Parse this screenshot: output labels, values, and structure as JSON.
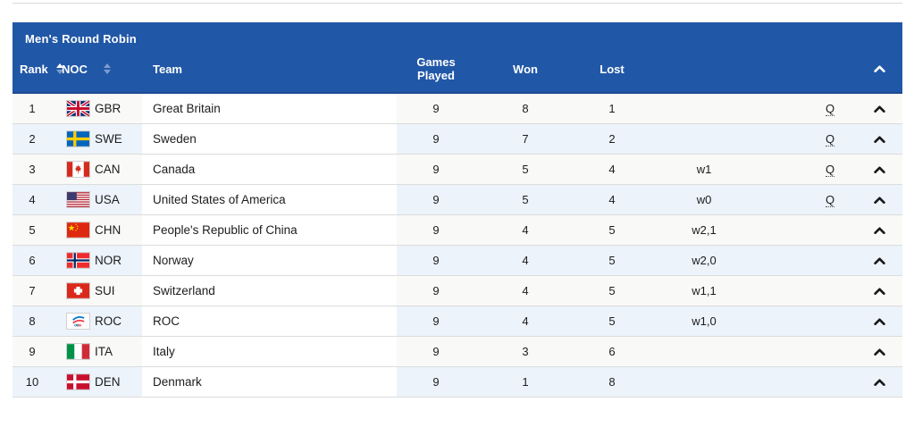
{
  "panel": {
    "title": "Men's Round Robin",
    "header": {
      "rank_label": "Rank",
      "noc_label": "NOC",
      "team_label": "Team",
      "games_played_label": "Games Played",
      "won_label": "Won",
      "lost_label": "Lost",
      "tiebreaker_label": "",
      "qualification_label": ""
    },
    "icons": {
      "rank_sort": "sort-arrows-icon (ascending active)",
      "noc_sort": "sort-arrows-icon",
      "collapse": "chevron-up-icon"
    },
    "colors": {
      "header_bg": "#2157a7",
      "header_text": "#ffffff",
      "stripe_bg": "#ecf3fb",
      "row_bg": "#f9f9f7",
      "border": "#dcdcdc",
      "cell_text": "#1c1c1c"
    },
    "rows": [
      {
        "rank": "1",
        "noc": "GBR",
        "team": "Great Britain",
        "games_played": "9",
        "won": "8",
        "lost": "1",
        "tiebreaker": "",
        "qualification": "Q"
      },
      {
        "rank": "2",
        "noc": "SWE",
        "team": "Sweden",
        "games_played": "9",
        "won": "7",
        "lost": "2",
        "tiebreaker": "",
        "qualification": "Q"
      },
      {
        "rank": "3",
        "noc": "CAN",
        "team": "Canada",
        "games_played": "9",
        "won": "5",
        "lost": "4",
        "tiebreaker": "w1",
        "qualification": "Q"
      },
      {
        "rank": "4",
        "noc": "USA",
        "team": "United States of America",
        "games_played": "9",
        "won": "5",
        "lost": "4",
        "tiebreaker": "w0",
        "qualification": "Q"
      },
      {
        "rank": "5",
        "noc": "CHN",
        "team": "People's Republic of China",
        "games_played": "9",
        "won": "4",
        "lost": "5",
        "tiebreaker": "w2,1",
        "qualification": ""
      },
      {
        "rank": "6",
        "noc": "NOR",
        "team": "Norway",
        "games_played": "9",
        "won": "4",
        "lost": "5",
        "tiebreaker": "w2,0",
        "qualification": ""
      },
      {
        "rank": "7",
        "noc": "SUI",
        "team": "Switzerland",
        "games_played": "9",
        "won": "4",
        "lost": "5",
        "tiebreaker": "w1,1",
        "qualification": ""
      },
      {
        "rank": "8",
        "noc": "ROC",
        "team": "ROC",
        "games_played": "9",
        "won": "4",
        "lost": "5",
        "tiebreaker": "w1,0",
        "qualification": ""
      },
      {
        "rank": "9",
        "noc": "ITA",
        "team": "Italy",
        "games_played": "9",
        "won": "3",
        "lost": "6",
        "tiebreaker": "",
        "qualification": ""
      },
      {
        "rank": "10",
        "noc": "DEN",
        "team": "Denmark",
        "games_played": "9",
        "won": "1",
        "lost": "8",
        "tiebreaker": "",
        "qualification": ""
      }
    ]
  }
}
